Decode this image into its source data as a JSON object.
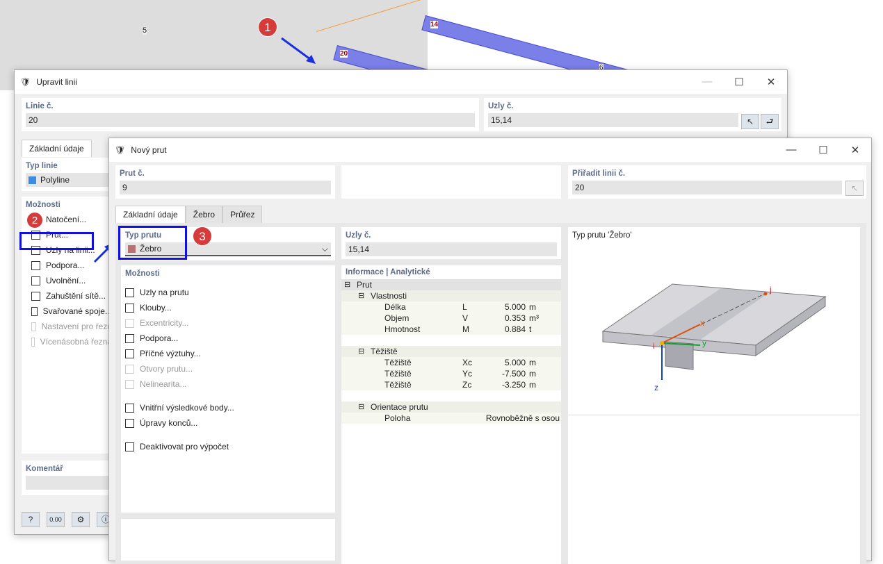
{
  "scene": {
    "nodes": [
      "14",
      "20"
    ],
    "line_labels": [
      "5",
      "6",
      "6"
    ],
    "markers": [
      "1",
      "2",
      "3"
    ],
    "beam_color": "#7b7fe8"
  },
  "edit_line": {
    "title": "Upravit linii",
    "line_no_label": "Linie č.",
    "line_no": "20",
    "nodes_label": "Uzly č.",
    "nodes": "15,14",
    "tab": "Základní údaje",
    "line_type_label": "Typ linie",
    "line_type": "Polyline",
    "line_type_color": "#3a8de0",
    "options_label": "Možnosti",
    "options": [
      {
        "label": "Natočení...",
        "enabled": true
      },
      {
        "label": "Prut...",
        "enabled": true
      },
      {
        "label": "Uzly na linii...",
        "enabled": true
      },
      {
        "label": "Podpora...",
        "enabled": true
      },
      {
        "label": "Uvolnění...",
        "enabled": true
      },
      {
        "label": "Zahuštění sítě...",
        "enabled": true
      },
      {
        "label": "Svařované spoje...",
        "enabled": true
      },
      {
        "label": "Nastavení pro řezn",
        "enabled": false
      },
      {
        "label": "Vícenásobná řezna",
        "enabled": false
      }
    ],
    "comment_label": "Komentář"
  },
  "new_member": {
    "title": "Nový prut",
    "member_no_label": "Prut č.",
    "member_no": "9",
    "assign_line_label": "Přiřadit linii č.",
    "assign_line": "20",
    "tabs": [
      "Základní údaje",
      "Žebro",
      "Průřez"
    ],
    "member_type_label": "Typ prutu",
    "member_type": "Žebro",
    "member_type_color": "#b87070",
    "nodes_label": "Uzly č.",
    "nodes": "15,14",
    "options_label": "Možnosti",
    "options": [
      {
        "label": "Uzly na prutu",
        "enabled": true
      },
      {
        "label": "Klouby...",
        "enabled": true
      },
      {
        "label": "Excentricity...",
        "enabled": false
      },
      {
        "label": "Podpora...",
        "enabled": true
      },
      {
        "label": "Příčné výztuhy...",
        "enabled": true
      },
      {
        "label": "Otvory prutu...",
        "enabled": false
      },
      {
        "label": "Nelinearita...",
        "enabled": false
      }
    ],
    "options2": [
      {
        "label": "Vnitřní výsledkové body...",
        "enabled": true
      },
      {
        "label": "Úpravy konců...",
        "enabled": true
      }
    ],
    "options3": [
      {
        "label": "Deaktivovat pro výpočet",
        "enabled": true
      }
    ],
    "info_label": "Informace | Analytické",
    "info": {
      "root": "Prut",
      "groups": [
        {
          "name": "Vlastnosti",
          "rows": [
            [
              "Délka",
              "L",
              "5.000",
              "m"
            ],
            [
              "Objem",
              "V",
              "0.353",
              "m³"
            ],
            [
              "Hmotnost",
              "M",
              "0.884",
              "t"
            ]
          ]
        },
        {
          "name": "Těžiště",
          "rows": [
            [
              "Těžiště",
              "Xc",
              "5.000",
              "m"
            ],
            [
              "Těžiště",
              "Yc",
              "-7.500",
              "m"
            ],
            [
              "Těžiště",
              "Zc",
              "-3.250",
              "m"
            ]
          ]
        },
        {
          "name": "Orientace prutu",
          "rows": [
            [
              "Poloha",
              "",
              "Rovnoběžně s osou",
              ""
            ]
          ]
        }
      ]
    },
    "preview_label": "Typ prutu 'Žebro'",
    "axes": {
      "x": "x",
      "y": "y",
      "z": "z",
      "i": "i",
      "j": "j"
    }
  }
}
